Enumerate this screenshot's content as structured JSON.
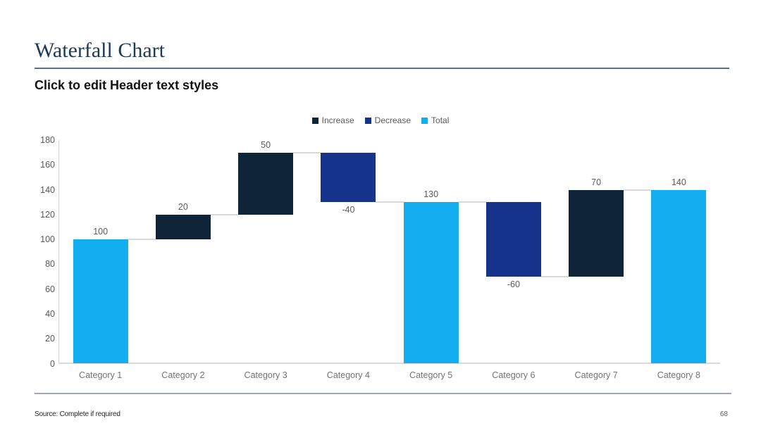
{
  "slide": {
    "title": "Waterfall Chart",
    "subtitle": "Click to edit Header text styles"
  },
  "footer": {
    "source": "Source: Complete if required",
    "page_number": "68"
  },
  "colors": {
    "increase": "#0F2438",
    "decrease": "#17348C",
    "total": "#12AEEF",
    "title_text": "#1F3A55",
    "header_rule": "#5C6E80",
    "axis_line": "#D9D9D9",
    "value_label_text": "#595959",
    "category_label_text": "#737373"
  },
  "chart_data": {
    "type": "bar",
    "subtype": "waterfall",
    "title": "",
    "xlabel": "",
    "ylabel": "",
    "grid": false,
    "legend_position": "top-center",
    "legend": [
      {
        "name": "Increase",
        "color": "#0F2438"
      },
      {
        "name": "Decrease",
        "color": "#17348C"
      },
      {
        "name": "Total",
        "color": "#12AEEF"
      }
    ],
    "categories": [
      "Category 1",
      "Category 2",
      "Category 3",
      "Category 4",
      "Category 5",
      "Category 6",
      "Category 7",
      "Category 8"
    ],
    "bars": [
      {
        "category": "Category 1",
        "type": "total",
        "start": 0,
        "end": 100,
        "value": 100,
        "label": "100"
      },
      {
        "category": "Category 2",
        "type": "increase",
        "start": 100,
        "end": 120,
        "value": 20,
        "label": "20"
      },
      {
        "category": "Category 3",
        "type": "increase",
        "start": 120,
        "end": 170,
        "value": 50,
        "label": "50"
      },
      {
        "category": "Category 4",
        "type": "decrease",
        "start": 170,
        "end": 130,
        "value": -40,
        "label": "-40"
      },
      {
        "category": "Category 5",
        "type": "total",
        "start": 0,
        "end": 130,
        "value": 130,
        "label": "130"
      },
      {
        "category": "Category 6",
        "type": "decrease",
        "start": 130,
        "end": 70,
        "value": -60,
        "label": "-60"
      },
      {
        "category": "Category 7",
        "type": "increase",
        "start": 70,
        "end": 140,
        "value": 70,
        "label": "70"
      },
      {
        "category": "Category 8",
        "type": "total",
        "start": 0,
        "end": 140,
        "value": 140,
        "label": "140"
      }
    ],
    "y_axis": {
      "min": 0,
      "max": 180,
      "step": 20,
      "ticks": [
        0,
        20,
        40,
        60,
        80,
        100,
        120,
        140,
        160,
        180
      ]
    },
    "connectors": true
  }
}
